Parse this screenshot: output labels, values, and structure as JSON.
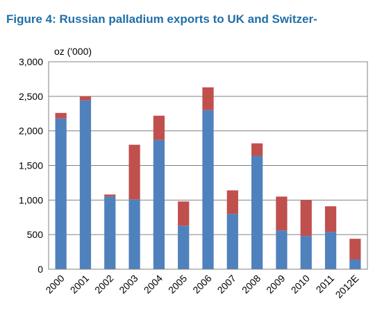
{
  "title": "Figure 4: Russian palladium exports to UK and Switzer-",
  "chart_data": {
    "type": "bar",
    "stacked": true,
    "ylabel": "oz ('000)",
    "ylim": [
      0,
      3000
    ],
    "yticks": [
      0,
      500,
      1000,
      1500,
      2000,
      2500,
      3000
    ],
    "ytick_labels": [
      "0",
      "500",
      "1,000",
      "1,500",
      "2,000",
      "2,500",
      "3,000"
    ],
    "grid": true,
    "categories": [
      "2000",
      "2001",
      "2002",
      "2003",
      "2004",
      "2005",
      "2006",
      "2007",
      "2008",
      "2009",
      "2010",
      "2011",
      "2012E"
    ],
    "series": [
      {
        "color": "#4f81bd",
        "values": [
          2180,
          2440,
          1050,
          1010,
          1870,
          630,
          2300,
          800,
          1640,
          560,
          480,
          540,
          140
        ]
      },
      {
        "color": "#c0504d",
        "values": [
          80,
          60,
          30,
          790,
          350,
          350,
          330,
          340,
          180,
          490,
          520,
          370,
          300
        ]
      }
    ]
  }
}
